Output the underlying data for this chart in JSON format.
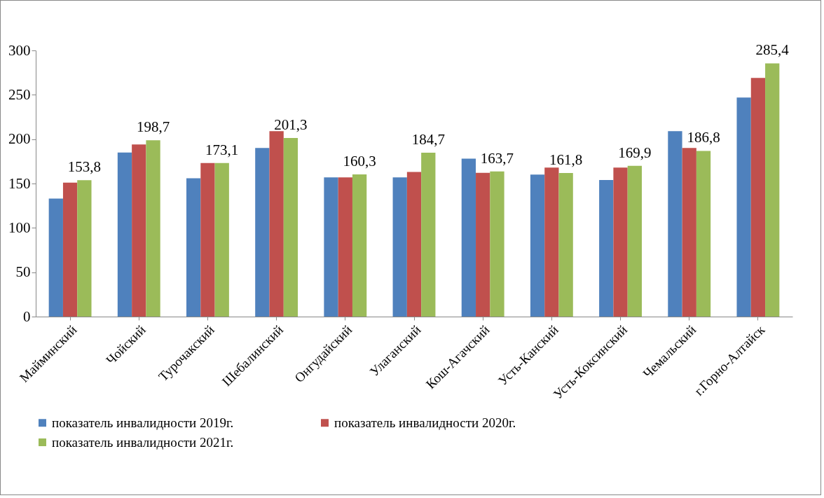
{
  "chart_data": {
    "type": "bar",
    "categories": [
      "Майминский",
      "Чойский",
      "Турочакский",
      "Шебалинский",
      "Онгудайский",
      "Улаганский",
      "Кош-Агачский",
      "Усть-Канский",
      "Усть-Коксинский",
      "Чемальский",
      "г.Горно-Алтайск"
    ],
    "series": [
      {
        "name": "показатель инвалидности 2019г.",
        "color": "#4f81bd",
        "values": [
          133,
          185,
          156,
          190,
          157,
          157,
          178,
          160,
          154,
          209,
          247
        ]
      },
      {
        "name": "показатель инвалидности 2020г.",
        "color": "#c0504d",
        "values": [
          151,
          194,
          173,
          209,
          157,
          163,
          162,
          168,
          168,
          190,
          269
        ]
      },
      {
        "name": "показатель инвалидности 2021г.",
        "color": "#9bbb59",
        "values": [
          153.8,
          198.7,
          173.1,
          201.3,
          160.3,
          184.7,
          163.7,
          161.8,
          169.9,
          186.8,
          285.4
        ],
        "value_labels": [
          "153,8",
          "198,7",
          "173,1",
          "201,3",
          "160,3",
          "184,7",
          "163,7",
          "161,8",
          "169,9",
          "186,8",
          "285,4"
        ]
      }
    ],
    "ylim": [
      0,
      300
    ],
    "yticks": [
      0,
      50,
      100,
      150,
      200,
      250,
      300
    ],
    "grid": false,
    "legend": "bottom"
  }
}
